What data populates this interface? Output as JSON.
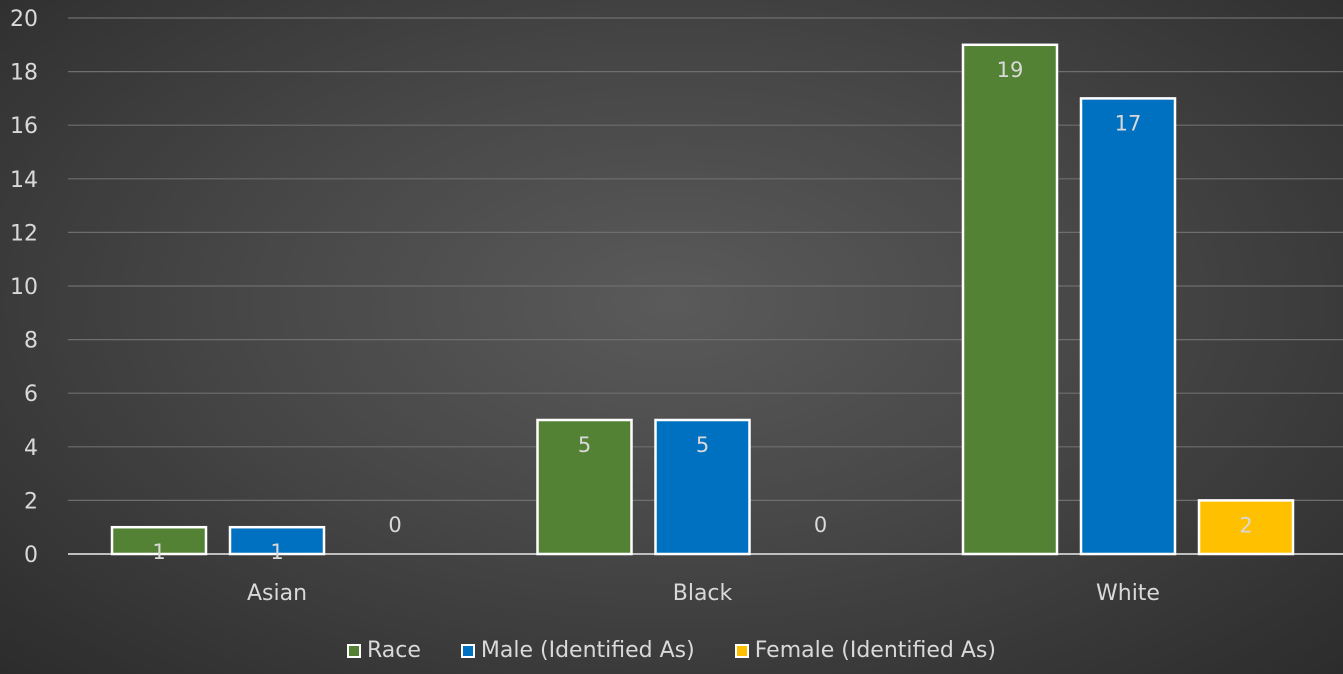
{
  "chart_data": {
    "type": "bar",
    "title": "",
    "xlabel": "",
    "ylabel": "",
    "categories": [
      "Asian",
      "Black",
      "White"
    ],
    "ylim": [
      0,
      20
    ],
    "yticks": [
      0,
      2,
      4,
      6,
      8,
      10,
      12,
      14,
      16,
      18,
      20
    ],
    "grid": true,
    "legend_position": "bottom",
    "series": [
      {
        "name": "Race",
        "color": "#548235",
        "values": [
          1,
          5,
          19
        ],
        "labels": [
          "1",
          "5",
          "19"
        ]
      },
      {
        "name": "Male (Identified As)",
        "color": "#0070c0",
        "values": [
          1,
          5,
          17
        ],
        "labels": [
          "1",
          "5",
          "17"
        ]
      },
      {
        "name": "Female (Identified As)",
        "color": "#ffc000",
        "values": [
          0,
          0,
          2
        ],
        "labels": [
          "0",
          "0",
          "2"
        ]
      }
    ]
  }
}
